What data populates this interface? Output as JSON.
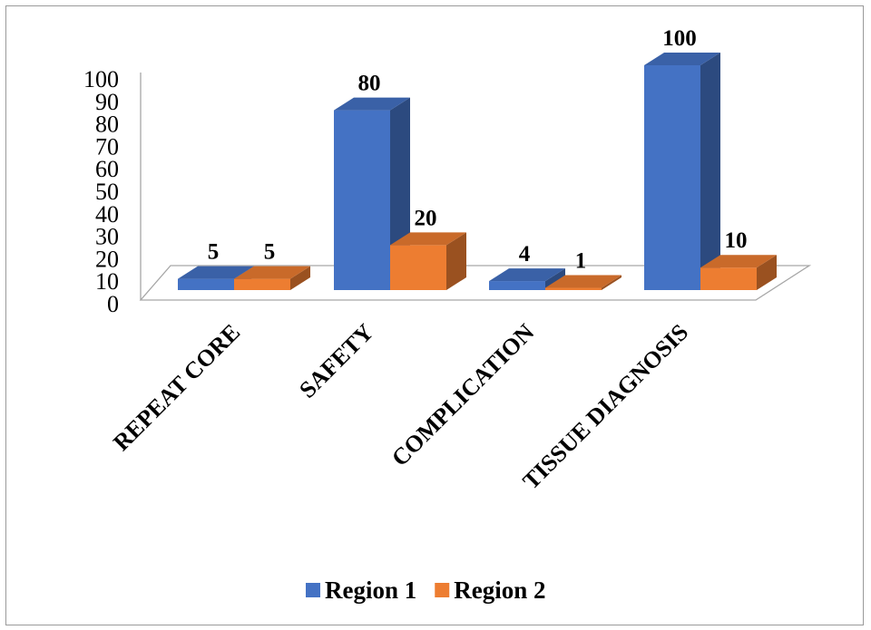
{
  "chart_data": {
    "type": "bar",
    "title": "",
    "xlabel": "",
    "ylabel": "",
    "categories": [
      "REPEAT CORE",
      "SAFETY",
      "COMPLICATION",
      "TISSUE DIAGNOSIS"
    ],
    "series": [
      {
        "name": "Region 1",
        "values": [
          5,
          80,
          4,
          100
        ],
        "color": "#4472C4"
      },
      {
        "name": "Region 2",
        "values": [
          5,
          20,
          1,
          10
        ],
        "color": "#ED7D31"
      }
    ],
    "yticks": [
      0,
      10,
      20,
      30,
      40,
      50,
      60,
      70,
      80,
      90,
      100
    ],
    "ylim": [
      0,
      100
    ],
    "grid": false,
    "style": "3d-clustered-column",
    "legend_position": "bottom",
    "data_labels": true
  }
}
